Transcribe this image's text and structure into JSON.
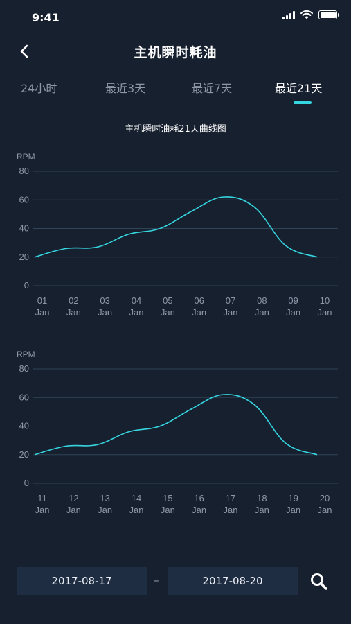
{
  "status_bar": {
    "time": "9:41",
    "icons": [
      "signal-icon",
      "wifi-icon",
      "battery-icon"
    ]
  },
  "nav": {
    "title": "主机瞬时耗油",
    "back_icon": "chevron-left-icon"
  },
  "tabs": [
    {
      "label": "24小时",
      "active": false
    },
    {
      "label": "最近3天",
      "active": false
    },
    {
      "label": "最近7天",
      "active": false
    },
    {
      "label": "最近21天",
      "active": true
    }
  ],
  "chart_caption": "主机瞬时油耗21天曲线图",
  "colors": {
    "background": "#17202f",
    "accent": "#35d6e0",
    "grid": "#2f4456",
    "axis_text": "#8e98a8",
    "input_bg": "#1f2d43"
  },
  "chart_data": [
    {
      "type": "line",
      "ylabel": "RPM",
      "ylim": [
        0,
        80
      ],
      "yticks": [
        "0",
        "20",
        "40",
        "60",
        "80"
      ],
      "categories": [
        "01\nJan",
        "02\nJan",
        "03\nJan",
        "04\nJan",
        "05\nJan",
        "06\nJan",
        "07\nJan",
        "08\nJan",
        "09\nJan",
        "10\nJan"
      ],
      "x_days": [
        "01",
        "02",
        "03",
        "04",
        "05",
        "06",
        "07",
        "08",
        "09",
        "10"
      ],
      "x_month": "Jan",
      "values": [
        20,
        26,
        27,
        36,
        40,
        52,
        62,
        55,
        28,
        20
      ],
      "grid": true
    },
    {
      "type": "line",
      "ylabel": "RPM",
      "ylim": [
        0,
        80
      ],
      "yticks": [
        "0",
        "20",
        "40",
        "60",
        "80"
      ],
      "x_days": [
        "11",
        "12",
        "13",
        "14",
        "15",
        "16",
        "17",
        "18",
        "19",
        "20"
      ],
      "x_month": "Jan",
      "values": [
        20,
        26,
        27,
        36,
        40,
        52,
        62,
        55,
        28,
        20
      ],
      "grid": true
    }
  ],
  "date_range": {
    "start": "2017-08-17",
    "separator": "–",
    "end": "2017-08-20",
    "search_icon": "search-icon"
  }
}
